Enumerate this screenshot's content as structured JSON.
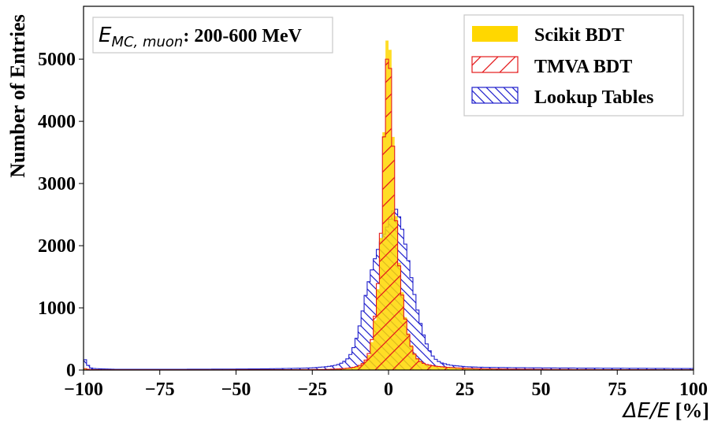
{
  "chart_data": {
    "type": "histogram",
    "xlabel_math": "ΔE/E",
    "xlabel_unit": " [%]",
    "ylabel": "Number of Entries",
    "xlim": [
      -100,
      100
    ],
    "ylim": [
      0,
      5850
    ],
    "x_ticks": [
      -100,
      -75,
      -50,
      -25,
      0,
      25,
      50,
      75,
      100
    ],
    "x_tick_labels": [
      "−100",
      "−75",
      "−50",
      "−25",
      "0",
      "25",
      "50",
      "75",
      "100"
    ],
    "y_ticks": [
      0,
      1000,
      2000,
      3000,
      4000,
      5000
    ],
    "y_tick_labels": [
      "0",
      "1000",
      "2000",
      "3000",
      "4000",
      "5000"
    ],
    "annotation": {
      "math_base": "E",
      "math_sub": "MC, muon",
      "text": ": 200-600 MeV"
    },
    "legend_position": "top-right",
    "series": [
      {
        "name": "Scikit BDT",
        "style": "filled",
        "color": "#FFD700",
        "points": [
          [
            -100,
            30
          ],
          [
            -98,
            5
          ],
          [
            -70,
            4
          ],
          [
            -30,
            5
          ],
          [
            -20,
            8
          ],
          [
            -15,
            20
          ],
          [
            -12,
            35
          ],
          [
            -10,
            55
          ],
          [
            -8,
            110
          ],
          [
            -7,
            180
          ],
          [
            -6,
            300
          ],
          [
            -5,
            600
          ],
          [
            -4,
            1000
          ],
          [
            -3,
            1600
          ],
          [
            -2,
            2650
          ],
          [
            -1,
            5000
          ],
          [
            -0.5,
            5300
          ],
          [
            0,
            5520
          ],
          [
            0.5,
            5150
          ],
          [
            1,
            4500
          ],
          [
            2,
            3000
          ],
          [
            3,
            1950
          ],
          [
            4,
            1500
          ],
          [
            5,
            1000
          ],
          [
            6,
            700
          ],
          [
            7,
            480
          ],
          [
            8,
            320
          ],
          [
            9,
            220
          ],
          [
            10,
            160
          ],
          [
            12,
            100
          ],
          [
            15,
            70
          ],
          [
            20,
            45
          ],
          [
            25,
            30
          ],
          [
            30,
            22
          ],
          [
            40,
            15
          ],
          [
            50,
            10
          ],
          [
            70,
            6
          ],
          [
            100,
            4
          ]
        ]
      },
      {
        "name": "TMVA BDT",
        "style": "hatch-forward",
        "color": "#E41A1C",
        "points": [
          [
            -100,
            30
          ],
          [
            -98,
            5
          ],
          [
            -70,
            4
          ],
          [
            -30,
            6
          ],
          [
            -20,
            10
          ],
          [
            -15,
            22
          ],
          [
            -12,
            38
          ],
          [
            -10,
            60
          ],
          [
            -8,
            120
          ],
          [
            -7,
            200
          ],
          [
            -6,
            330
          ],
          [
            -5,
            650
          ],
          [
            -4,
            1080
          ],
          [
            -3,
            1700
          ],
          [
            -2,
            2700
          ],
          [
            -1,
            4800
          ],
          [
            -0.5,
            5000
          ],
          [
            0,
            5150
          ],
          [
            0.5,
            4850
          ],
          [
            1,
            4300
          ],
          [
            2,
            2900
          ],
          [
            3,
            1900
          ],
          [
            4,
            1450
          ],
          [
            5,
            960
          ],
          [
            6,
            680
          ],
          [
            7,
            460
          ],
          [
            8,
            300
          ],
          [
            9,
            210
          ],
          [
            10,
            150
          ],
          [
            12,
            95
          ],
          [
            15,
            65
          ],
          [
            20,
            42
          ],
          [
            25,
            28
          ],
          [
            30,
            20
          ],
          [
            40,
            14
          ],
          [
            50,
            10
          ],
          [
            70,
            6
          ],
          [
            100,
            4
          ]
        ]
      },
      {
        "name": "Lookup Tables",
        "style": "hatch-backward",
        "color": "#1F1FCC",
        "points": [
          [
            -100,
            220
          ],
          [
            -99,
            110
          ],
          [
            -98,
            40
          ],
          [
            -97,
            25
          ],
          [
            -90,
            12
          ],
          [
            -80,
            12
          ],
          [
            -70,
            12
          ],
          [
            -60,
            14
          ],
          [
            -50,
            16
          ],
          [
            -40,
            20
          ],
          [
            -30,
            28
          ],
          [
            -25,
            35
          ],
          [
            -20,
            55
          ],
          [
            -17,
            80
          ],
          [
            -15,
            120
          ],
          [
            -13,
            200
          ],
          [
            -12,
            300
          ],
          [
            -11,
            420
          ],
          [
            -10,
            600
          ],
          [
            -9,
            820
          ],
          [
            -8,
            1080
          ],
          [
            -7,
            1320
          ],
          [
            -6,
            1520
          ],
          [
            -5,
            1700
          ],
          [
            -4,
            1880
          ],
          [
            -3,
            2000
          ],
          [
            -2,
            2120
          ],
          [
            -1,
            2250
          ],
          [
            0,
            2350
          ],
          [
            1,
            2500
          ],
          [
            2,
            2620
          ],
          [
            3,
            2550
          ],
          [
            4,
            2380
          ],
          [
            5,
            2150
          ],
          [
            6,
            1900
          ],
          [
            7,
            1620
          ],
          [
            8,
            1350
          ],
          [
            9,
            1080
          ],
          [
            10,
            850
          ],
          [
            11,
            650
          ],
          [
            12,
            480
          ],
          [
            13,
            360
          ],
          [
            14,
            260
          ],
          [
            15,
            190
          ],
          [
            17,
            120
          ],
          [
            20,
            80
          ],
          [
            25,
            55
          ],
          [
            30,
            45
          ],
          [
            40,
            38
          ],
          [
            50,
            35
          ],
          [
            60,
            32
          ],
          [
            70,
            30
          ],
          [
            80,
            28
          ],
          [
            90,
            26
          ],
          [
            100,
            24
          ]
        ]
      }
    ]
  }
}
